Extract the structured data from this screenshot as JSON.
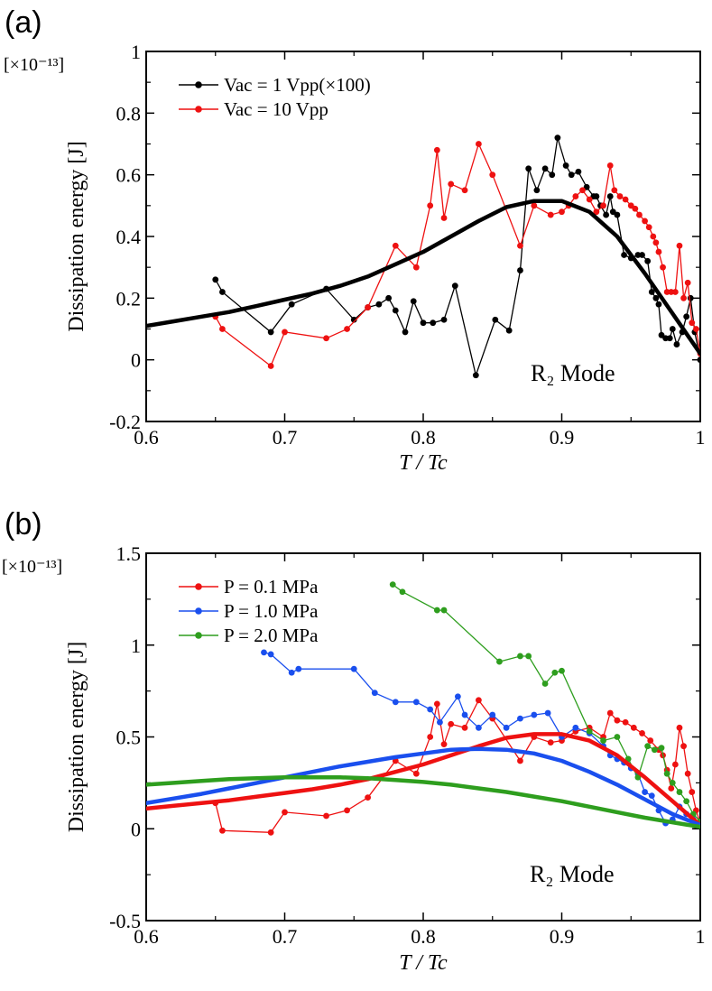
{
  "chart_data": [
    {
      "type": "line",
      "panel_label": "(a)",
      "scale_label": "[×10⁻¹³]",
      "ylabel": "Dissipation energy [J]",
      "xlabel": "T / Tc",
      "xlim": [
        0.6,
        1.0
      ],
      "ylim": [
        -0.2,
        1.0
      ],
      "xticks": [
        0.6,
        0.7,
        0.8,
        0.9,
        1.0
      ],
      "xtick_labels": [
        "0.6",
        "0.7",
        "0.8",
        "0.9",
        "1"
      ],
      "yticks": [
        -0.2,
        0,
        0.2,
        0.4,
        0.6,
        0.8,
        1.0
      ],
      "ytick_labels": [
        "-0.2",
        "0",
        "0.2",
        "0.4",
        "0.6",
        "0.8",
        "1"
      ],
      "annotation": "R₂ Mode",
      "legend_location": "top-left",
      "series": [
        {
          "name": "Vac = 1 Vpp(×100)",
          "legend_label": "Vac = 1 Vpp(×100)",
          "color": "#000000",
          "x": [
            0.65,
            0.655,
            0.69,
            0.705,
            0.73,
            0.75,
            0.76,
            0.768,
            0.775,
            0.78,
            0.787,
            0.793,
            0.8,
            0.807,
            0.815,
            0.823,
            0.838,
            0.852,
            0.862,
            0.87,
            0.876,
            0.882,
            0.888,
            0.893,
            0.897,
            0.903,
            0.907,
            0.912,
            0.918,
            0.923,
            0.925,
            0.928,
            0.932,
            0.935,
            0.937,
            0.94,
            0.945,
            0.95,
            0.955,
            0.958,
            0.962,
            0.965,
            0.968,
            0.97,
            0.972,
            0.975,
            0.978,
            0.98,
            0.983,
            0.987,
            0.99,
            0.993,
            0.996,
            1.0
          ],
          "y": [
            0.26,
            0.22,
            0.09,
            0.18,
            0.23,
            0.13,
            0.17,
            0.18,
            0.2,
            0.16,
            0.09,
            0.19,
            0.12,
            0.12,
            0.13,
            0.24,
            -0.05,
            0.13,
            0.095,
            0.29,
            0.62,
            0.55,
            0.62,
            0.6,
            0.72,
            0.63,
            0.6,
            0.61,
            0.56,
            0.53,
            0.53,
            0.5,
            0.47,
            0.53,
            0.48,
            0.47,
            0.34,
            0.33,
            0.34,
            0.34,
            0.32,
            0.22,
            0.2,
            0.18,
            0.08,
            0.07,
            0.07,
            0.1,
            0.05,
            0.09,
            0.14,
            0.2,
            0.09,
            0.0
          ]
        },
        {
          "name": "Vac = 10 Vpp",
          "legend_label": "Vac = 10 Vpp",
          "color": "#ee1111",
          "x": [
            0.65,
            0.655,
            0.69,
            0.7,
            0.73,
            0.745,
            0.76,
            0.78,
            0.795,
            0.805,
            0.81,
            0.815,
            0.82,
            0.83,
            0.84,
            0.85,
            0.87,
            0.88,
            0.892,
            0.9,
            0.905,
            0.91,
            0.915,
            0.92,
            0.925,
            0.93,
            0.935,
            0.938,
            0.942,
            0.946,
            0.95,
            0.953,
            0.956,
            0.96,
            0.963,
            0.966,
            0.968,
            0.97,
            0.973,
            0.976,
            0.979,
            0.982,
            0.985,
            0.988,
            0.991,
            0.994,
            0.997,
            1.0
          ],
          "y": [
            0.14,
            0.1,
            -0.02,
            0.09,
            0.07,
            0.1,
            0.17,
            0.37,
            0.3,
            0.5,
            0.68,
            0.46,
            0.57,
            0.55,
            0.7,
            0.6,
            0.37,
            0.5,
            0.47,
            0.48,
            0.5,
            0.53,
            0.55,
            0.52,
            0.48,
            0.5,
            0.63,
            0.55,
            0.53,
            0.52,
            0.5,
            0.49,
            0.47,
            0.45,
            0.43,
            0.4,
            0.38,
            0.35,
            0.3,
            0.22,
            0.22,
            0.22,
            0.37,
            0.2,
            0.25,
            0.12,
            0.1,
            0.02
          ]
        },
        {
          "name": "fit",
          "legend_label": "",
          "color": "#000000",
          "fit": true,
          "x": [
            0.6,
            0.62,
            0.64,
            0.66,
            0.68,
            0.7,
            0.72,
            0.74,
            0.76,
            0.78,
            0.8,
            0.82,
            0.84,
            0.86,
            0.88,
            0.9,
            0.92,
            0.94,
            0.96,
            0.98,
            1.0
          ],
          "y": [
            0.11,
            0.125,
            0.14,
            0.155,
            0.175,
            0.195,
            0.215,
            0.24,
            0.27,
            0.31,
            0.35,
            0.4,
            0.45,
            0.495,
            0.515,
            0.515,
            0.48,
            0.4,
            0.28,
            0.15,
            0.02
          ]
        }
      ]
    },
    {
      "type": "line",
      "panel_label": "(b)",
      "scale_label": "[×10⁻¹³]",
      "ylabel": "Dissipation energy [J]",
      "xlabel": "T / Tc",
      "xlim": [
        0.6,
        1.0
      ],
      "ylim": [
        -0.5,
        1.5
      ],
      "xticks": [
        0.6,
        0.7,
        0.8,
        0.9,
        1.0
      ],
      "xtick_labels": [
        "0.6",
        "0.7",
        "0.8",
        "0.9",
        "1"
      ],
      "yticks": [
        -0.5,
        0,
        0.5,
        1.0,
        1.5
      ],
      "ytick_labels": [
        "-0.5",
        "0",
        "0.5",
        "1",
        "1.5"
      ],
      "annotation": "R₂ Mode",
      "legend_location": "top-left",
      "series": [
        {
          "name": "P = 0.1 MPa",
          "legend_label": "P = 0.1 MPa",
          "color": "#ee1111",
          "x": [
            0.65,
            0.655,
            0.69,
            0.7,
            0.73,
            0.745,
            0.76,
            0.78,
            0.795,
            0.805,
            0.81,
            0.815,
            0.82,
            0.83,
            0.84,
            0.85,
            0.87,
            0.88,
            0.892,
            0.9,
            0.91,
            0.92,
            0.93,
            0.935,
            0.94,
            0.946,
            0.952,
            0.958,
            0.964,
            0.97,
            0.973,
            0.976,
            0.979,
            0.982,
            0.985,
            0.988,
            0.991,
            0.994,
            0.997,
            1.0
          ],
          "y": [
            0.14,
            -0.01,
            -0.02,
            0.09,
            0.07,
            0.1,
            0.17,
            0.37,
            0.3,
            0.5,
            0.68,
            0.46,
            0.57,
            0.55,
            0.7,
            0.6,
            0.37,
            0.5,
            0.47,
            0.48,
            0.53,
            0.55,
            0.5,
            0.63,
            0.59,
            0.58,
            0.55,
            0.52,
            0.48,
            0.43,
            0.4,
            0.32,
            0.22,
            0.35,
            0.55,
            0.45,
            0.3,
            0.2,
            0.1,
            0.03
          ]
        },
        {
          "name": "P = 1.0 MPa",
          "legend_label": "P = 1.0 MPa",
          "color": "#1a4fee",
          "x": [
            0.685,
            0.69,
            0.705,
            0.71,
            0.75,
            0.765,
            0.78,
            0.795,
            0.805,
            0.812,
            0.825,
            0.83,
            0.84,
            0.85,
            0.86,
            0.87,
            0.88,
            0.89,
            0.9,
            0.91,
            0.92,
            0.93,
            0.935,
            0.94,
            0.945,
            0.95,
            0.955,
            0.96,
            0.965,
            0.97,
            0.975,
            0.98,
            0.985,
            0.99,
            0.995,
            1.0
          ],
          "y": [
            0.96,
            0.95,
            0.85,
            0.87,
            0.87,
            0.74,
            0.69,
            0.69,
            0.65,
            0.58,
            0.72,
            0.62,
            0.55,
            0.62,
            0.55,
            0.6,
            0.62,
            0.63,
            0.5,
            0.55,
            0.52,
            0.45,
            0.4,
            0.38,
            0.36,
            0.33,
            0.3,
            0.2,
            0.18,
            0.1,
            0.03,
            0.05,
            0.12,
            0.08,
            0.05,
            0.03
          ]
        },
        {
          "name": "P = 2.0 MPa",
          "legend_label": "P = 2.0 MPa",
          "color": "#2e9e1e",
          "x": [
            0.778,
            0.785,
            0.81,
            0.815,
            0.855,
            0.87,
            0.876,
            0.888,
            0.895,
            0.9,
            0.92,
            0.93,
            0.94,
            0.948,
            0.955,
            0.962,
            0.967,
            0.972,
            0.976,
            0.98,
            0.985,
            0.99,
            0.995,
            1.0
          ],
          "y": [
            1.33,
            1.29,
            1.19,
            1.19,
            0.91,
            0.94,
            0.94,
            0.79,
            0.85,
            0.86,
            0.53,
            0.48,
            0.5,
            0.38,
            0.28,
            0.45,
            0.43,
            0.44,
            0.3,
            0.25,
            0.2,
            0.15,
            0.08,
            0.04
          ]
        },
        {
          "name": "fit 0.1 MPa",
          "legend_label": "",
          "color": "#ee1111",
          "fit": true,
          "x": [
            0.6,
            0.62,
            0.64,
            0.66,
            0.68,
            0.7,
            0.72,
            0.74,
            0.76,
            0.78,
            0.8,
            0.82,
            0.84,
            0.86,
            0.88,
            0.9,
            0.92,
            0.94,
            0.96,
            0.98,
            1.0
          ],
          "y": [
            0.11,
            0.125,
            0.14,
            0.155,
            0.175,
            0.195,
            0.215,
            0.24,
            0.27,
            0.31,
            0.35,
            0.4,
            0.45,
            0.495,
            0.515,
            0.515,
            0.48,
            0.4,
            0.28,
            0.15,
            0.02
          ]
        },
        {
          "name": "fit 1.0 MPa",
          "legend_label": "",
          "color": "#1a4fee",
          "fit": true,
          "x": [
            0.6,
            0.62,
            0.64,
            0.66,
            0.68,
            0.7,
            0.72,
            0.74,
            0.76,
            0.78,
            0.8,
            0.82,
            0.84,
            0.86,
            0.88,
            0.9,
            0.92,
            0.94,
            0.96,
            0.98,
            1.0
          ],
          "y": [
            0.14,
            0.165,
            0.19,
            0.22,
            0.25,
            0.28,
            0.31,
            0.34,
            0.365,
            0.39,
            0.41,
            0.43,
            0.435,
            0.43,
            0.41,
            0.37,
            0.31,
            0.24,
            0.16,
            0.08,
            0.02
          ]
        },
        {
          "name": "fit 2.0 MPa",
          "legend_label": "",
          "color": "#2e9e1e",
          "fit": true,
          "x": [
            0.6,
            0.62,
            0.64,
            0.66,
            0.68,
            0.7,
            0.72,
            0.74,
            0.76,
            0.78,
            0.8,
            0.82,
            0.84,
            0.86,
            0.88,
            0.9,
            0.92,
            0.94,
            0.96,
            0.98,
            1.0
          ],
          "y": [
            0.24,
            0.25,
            0.26,
            0.27,
            0.275,
            0.28,
            0.28,
            0.28,
            0.275,
            0.265,
            0.255,
            0.24,
            0.22,
            0.2,
            0.175,
            0.15,
            0.12,
            0.09,
            0.06,
            0.035,
            0.01
          ]
        }
      ]
    }
  ]
}
